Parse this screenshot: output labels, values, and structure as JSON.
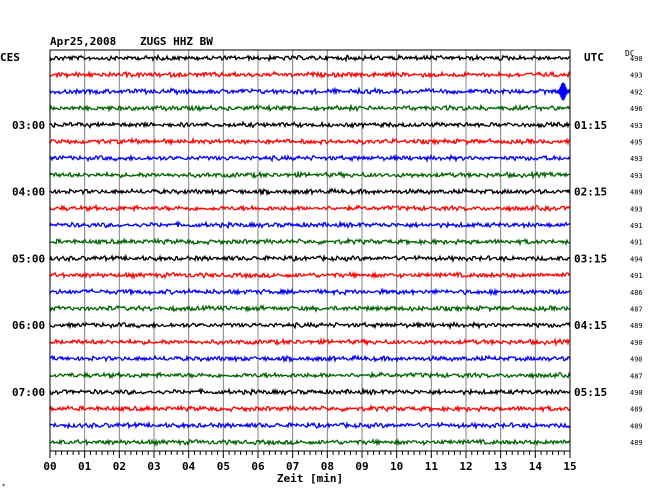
{
  "header": {
    "date": "Apr25,2008",
    "station": "ZUGS HHZ BW",
    "left_zone": "CES",
    "right_zone": "UTC",
    "dc_label": "DC"
  },
  "colors": {
    "trace_cycle": [
      "#000000",
      "#ff0000",
      "#0000ff",
      "#006400"
    ],
    "grid": "#808080",
    "frame": "#000000"
  },
  "chart_data": {
    "type": "line",
    "title": "Apr25,2008   ZUGS HHZ BW",
    "xlabel": "Zeit [min]",
    "xlim": [
      0,
      15
    ],
    "x_ticks": [
      "00",
      "01",
      "02",
      "03",
      "04",
      "05",
      "06",
      "07",
      "08",
      "09",
      "10",
      "11",
      "12",
      "13",
      "14",
      "15"
    ],
    "trace_count": 24,
    "minutes_per_trace": 15,
    "left_hour_labels": [
      {
        "trace": 4,
        "label": "03:00"
      },
      {
        "trace": 8,
        "label": "04:00"
      },
      {
        "trace": 12,
        "label": "05:00"
      },
      {
        "trace": 16,
        "label": "06:00"
      },
      {
        "trace": 20,
        "label": "07:00"
      }
    ],
    "right_hour_labels": [
      {
        "trace": 4,
        "label": "01:15"
      },
      {
        "trace": 8,
        "label": "02:15"
      },
      {
        "trace": 12,
        "label": "03:15"
      },
      {
        "trace": 16,
        "label": "04:15"
      },
      {
        "trace": 20,
        "label": "05:15"
      }
    ],
    "dc_values": [
      "490",
      "493",
      "492",
      "496",
      "493",
      "495",
      "493",
      "493",
      "489",
      "493",
      "491",
      "491",
      "494",
      "491",
      "486",
      "487",
      "489",
      "490",
      "490",
      "487",
      "490",
      "489",
      "489",
      "489"
    ],
    "event": {
      "trace": 2,
      "minute": 14.8
    }
  }
}
